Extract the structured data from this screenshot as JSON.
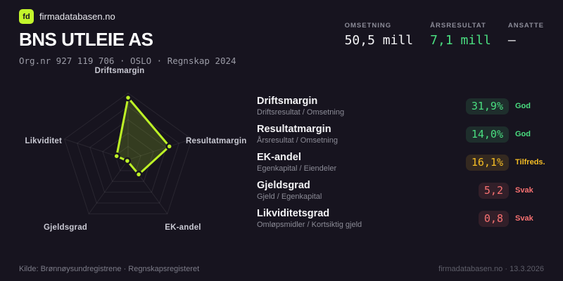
{
  "brand": {
    "logo_text": "fd",
    "name": "firmadatabasen.no",
    "accent": "#c3f52c"
  },
  "header": {
    "company_name": "BNS UTLEIE AS",
    "meta": "Org.nr 927 119 706 · OSLO · Regnskap 2024",
    "stats": [
      {
        "label": "OMSETNING",
        "value": "50,5 mill",
        "color": "#f4f4f6"
      },
      {
        "label": "ÅRSRESULTAT",
        "value": "7,1 mill",
        "color": "#4ade80"
      },
      {
        "label": "ANSATTE",
        "value": "–",
        "color": "#f4f4f6"
      }
    ]
  },
  "chart_data": {
    "type": "radar",
    "axes": [
      "Driftsmargin",
      "Resultatmargin",
      "EK-andel",
      "Gjeldsgrad",
      "Likviditet"
    ],
    "values": [
      0.93,
      0.65,
      0.27,
      0.02,
      0.18
    ],
    "max": 1,
    "rings": 5,
    "stroke_color": "#bdf226",
    "fill_color": "rgba(189,242,38,0.18)",
    "grid_color": "rgba(255,255,255,0.08)",
    "legend": "none",
    "title": ""
  },
  "metrics": [
    {
      "title": "Driftsmargin",
      "formula": "Driftsresultat / Omsetning",
      "value": "31,9%",
      "rating": "God",
      "status": "good"
    },
    {
      "title": "Resultatmargin",
      "formula": "Årsresultat / Omsetning",
      "value": "14,0%",
      "rating": "God",
      "status": "good"
    },
    {
      "title": "EK-andel",
      "formula": "Egenkapital / Eiendeler",
      "value": "16,1%",
      "rating": "Tilfreds.",
      "status": "medium"
    },
    {
      "title": "Gjeldsgrad",
      "formula": "Gjeld / Egenkapital",
      "value": "5,2",
      "rating": "Svak",
      "status": "weak"
    },
    {
      "title": "Likviditetsgrad",
      "formula": "Omløpsmidler / Kortsiktig gjeld",
      "value": "0,8",
      "rating": "Svak",
      "status": "weak"
    }
  ],
  "status_colors": {
    "good": "#4ade80",
    "medium": "#f5bd24",
    "weak": "#f87171"
  },
  "footer": {
    "source": "Kilde: Brønnøysundregistrene · Regnskapsregisteret",
    "site": "firmadatabasen.no · 13.3.2026"
  }
}
